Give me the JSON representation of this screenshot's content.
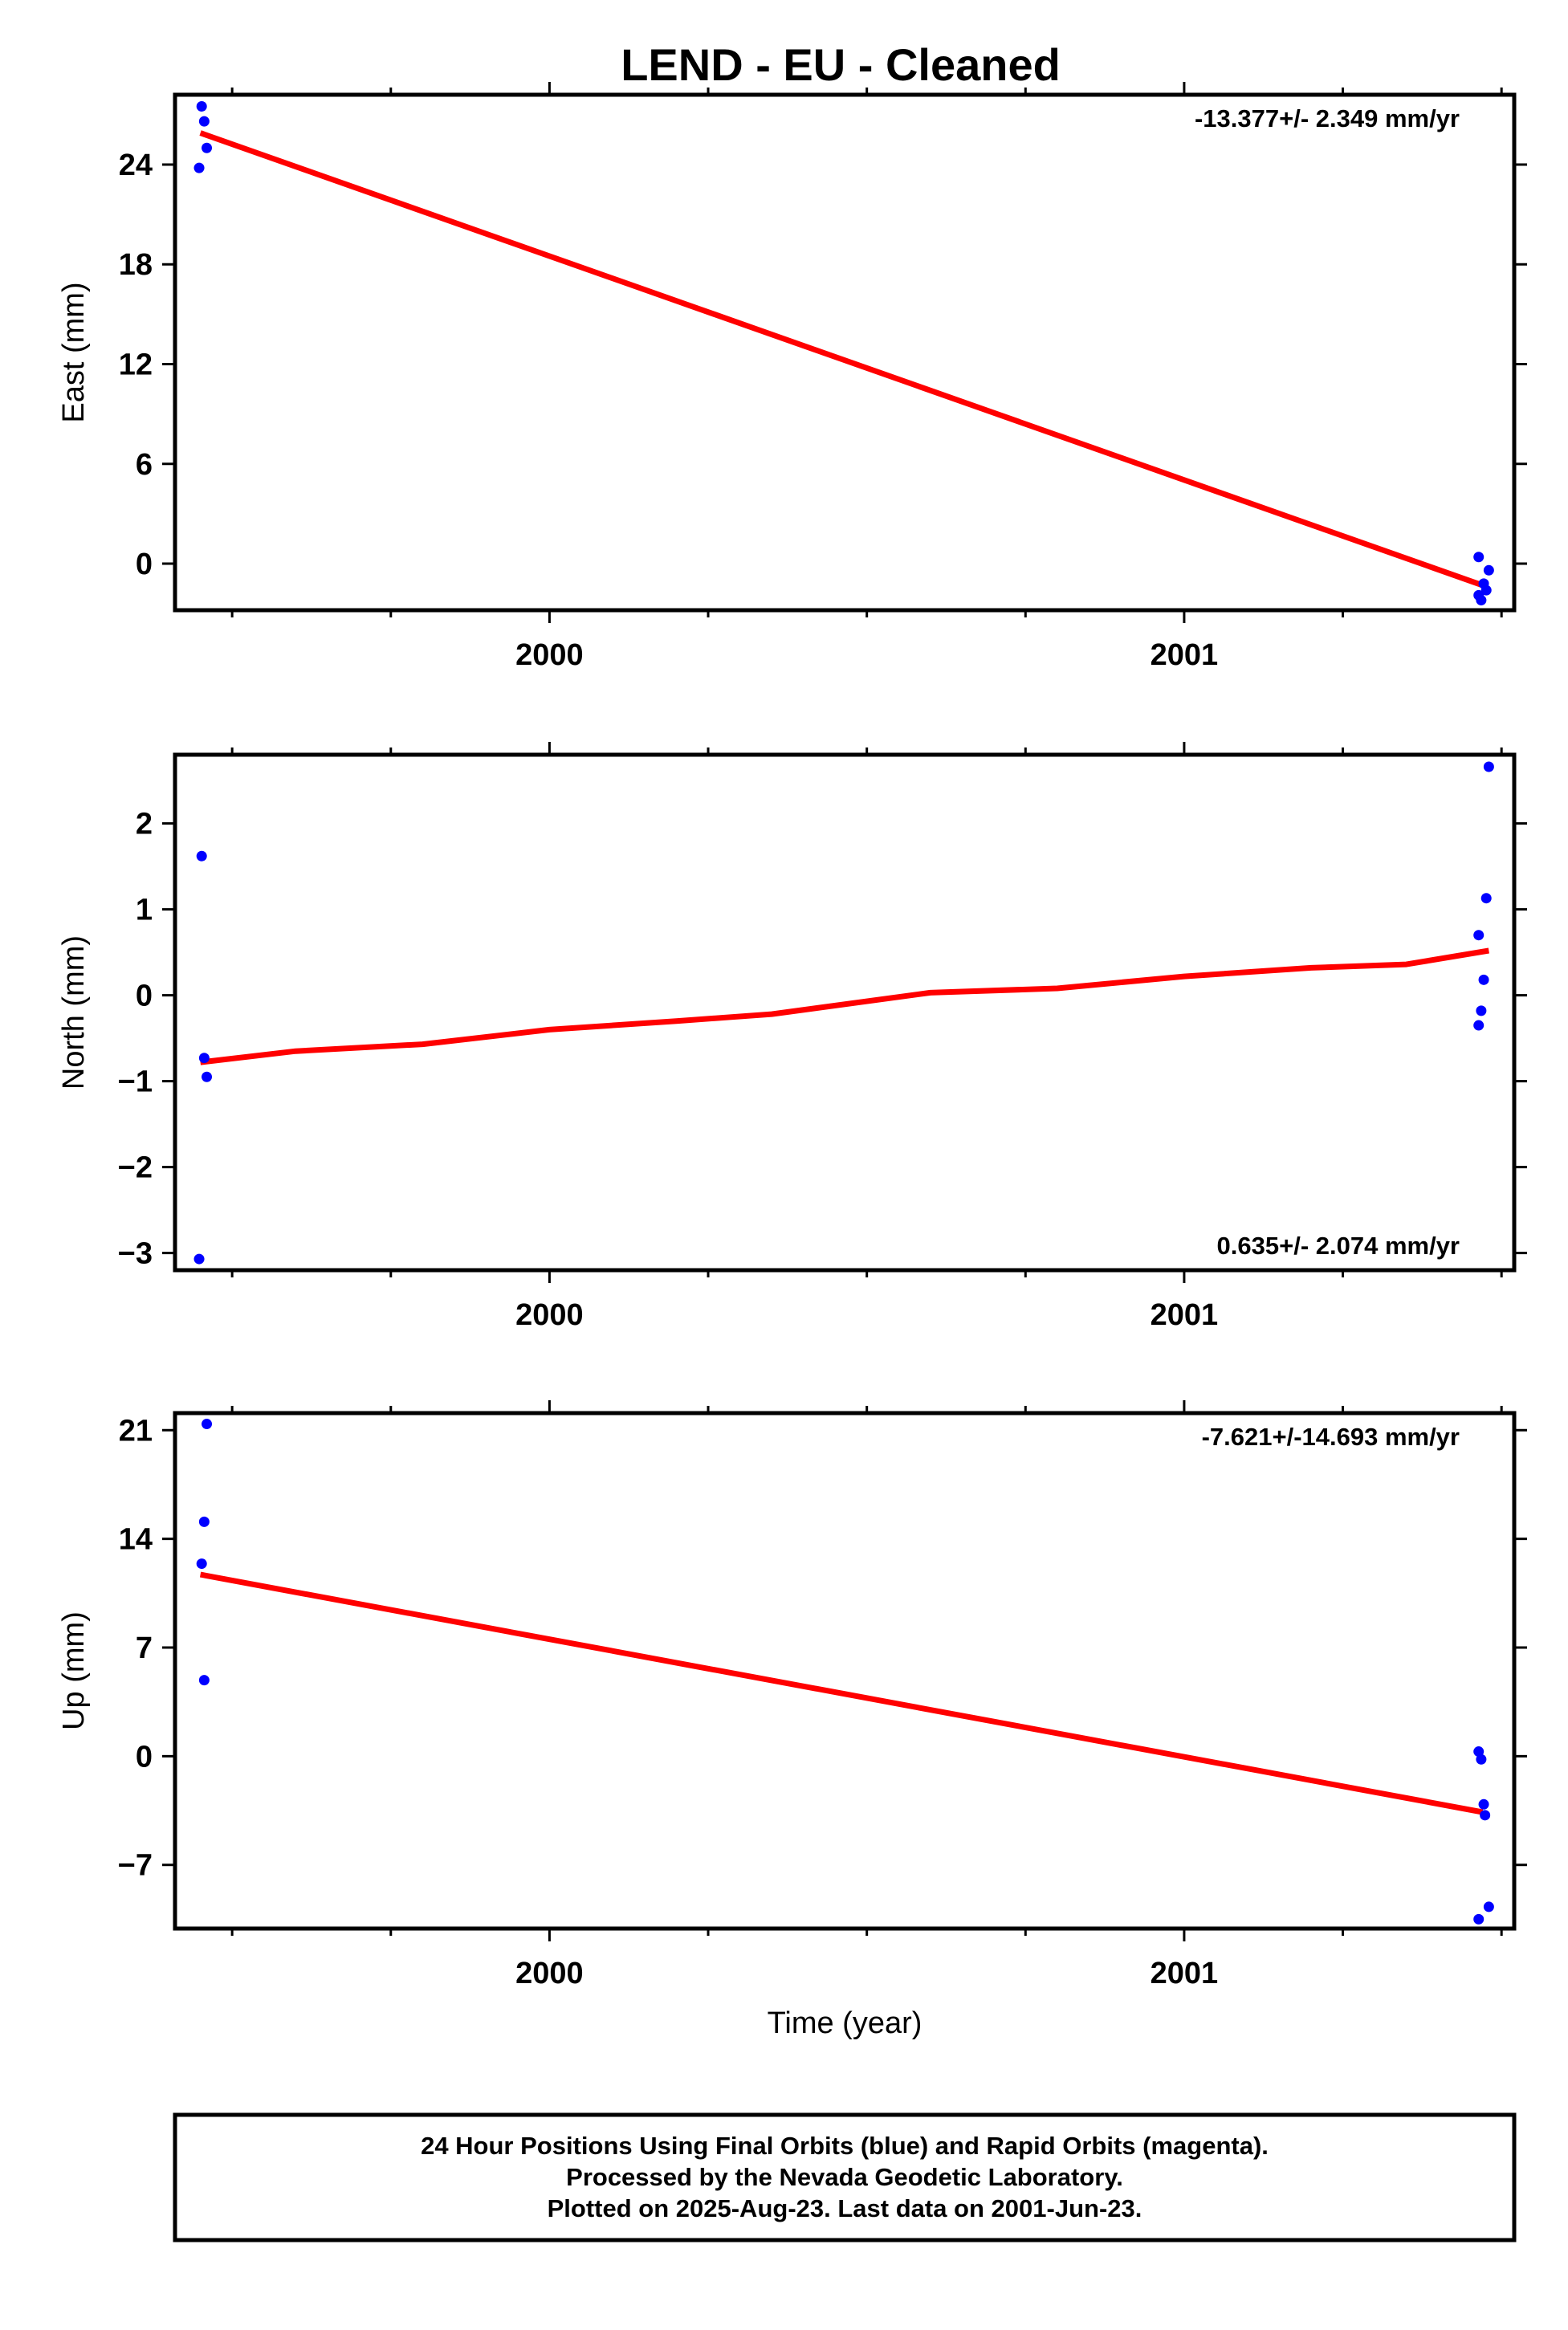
{
  "title": "LEND  - EU - Cleaned",
  "chart_data": [
    {
      "type": "scatter",
      "ylabel": "East (mm)",
      "xlabel": "",
      "xlim": [
        1999.41,
        2001.52
      ],
      "ylim": [
        -2.8,
        28.2
      ],
      "yticks": [
        0,
        6,
        12,
        18,
        24
      ],
      "xticks": [
        2000,
        2001
      ],
      "rate": "-13.377+/- 2.349 mm/yr",
      "rate_position": "top-right",
      "points": [
        {
          "x": 1999.452,
          "y": 27.5
        },
        {
          "x": 1999.456,
          "y": 26.6
        },
        {
          "x": 1999.46,
          "y": 25.0
        },
        {
          "x": 1999.448,
          "y": 23.8
        },
        {
          "x": 2001.464,
          "y": 0.4
        },
        {
          "x": 2001.464,
          "y": -1.9
        },
        {
          "x": 2001.468,
          "y": -2.2
        },
        {
          "x": 2001.472,
          "y": -1.2
        },
        {
          "x": 2001.476,
          "y": -1.6
        },
        {
          "x": 2001.48,
          "y": -0.4
        }
      ],
      "fit": [
        {
          "x": 1999.45,
          "y": 25.9
        },
        {
          "x": 2001.47,
          "y": -1.3
        }
      ]
    },
    {
      "type": "scatter",
      "ylabel": "North (mm)",
      "xlabel": "",
      "xlim": [
        1999.41,
        2001.52
      ],
      "ylim": [
        -3.2,
        2.8
      ],
      "yticks": [
        -3,
        -2,
        -1,
        0,
        1,
        2
      ],
      "xticks": [
        2000,
        2001
      ],
      "rate": "0.635+/- 2.074 mm/yr",
      "rate_position": "bottom-right",
      "points": [
        {
          "x": 1999.452,
          "y": 1.62
        },
        {
          "x": 1999.456,
          "y": -0.73
        },
        {
          "x": 1999.46,
          "y": -0.95
        },
        {
          "x": 1999.448,
          "y": -3.07
        },
        {
          "x": 2001.48,
          "y": 2.66
        },
        {
          "x": 2001.476,
          "y": 1.13
        },
        {
          "x": 2001.464,
          "y": 0.7
        },
        {
          "x": 2001.472,
          "y": 0.18
        },
        {
          "x": 2001.468,
          "y": -0.18
        },
        {
          "x": 2001.464,
          "y": -0.35
        }
      ],
      "fit": [
        {
          "x": 1999.45,
          "y": -0.78
        },
        {
          "x": 1999.6,
          "y": -0.65
        },
        {
          "x": 1999.8,
          "y": -0.57
        },
        {
          "x": 2000.0,
          "y": -0.4
        },
        {
          "x": 2000.2,
          "y": -0.3
        },
        {
          "x": 2000.35,
          "y": -0.22
        },
        {
          "x": 2000.6,
          "y": 0.03
        },
        {
          "x": 2000.8,
          "y": 0.08
        },
        {
          "x": 2001.0,
          "y": 0.22
        },
        {
          "x": 2001.2,
          "y": 0.32
        },
        {
          "x": 2001.35,
          "y": 0.36
        },
        {
          "x": 2001.48,
          "y": 0.52
        }
      ]
    },
    {
      "type": "scatter",
      "ylabel": "Up (mm)",
      "xlabel": "Time (year)",
      "xlim": [
        1999.41,
        2001.52
      ],
      "ylim": [
        -11.1,
        22.1
      ],
      "yticks": [
        -7,
        0,
        7,
        14,
        21
      ],
      "xticks": [
        2000,
        2001
      ],
      "rate": "-7.621+/-14.693 mm/yr",
      "rate_position": "top-right",
      "points": [
        {
          "x": 1999.46,
          "y": 21.4
        },
        {
          "x": 1999.456,
          "y": 15.1
        },
        {
          "x": 1999.452,
          "y": 12.4
        },
        {
          "x": 1999.456,
          "y": 4.9
        },
        {
          "x": 2001.464,
          "y": 0.3
        },
        {
          "x": 2001.468,
          "y": -0.2
        },
        {
          "x": 2001.472,
          "y": -3.1
        },
        {
          "x": 2001.474,
          "y": -3.8
        },
        {
          "x": 2001.48,
          "y": -9.7
        },
        {
          "x": 2001.464,
          "y": -10.5
        }
      ],
      "fit": [
        {
          "x": 1999.45,
          "y": 11.7
        },
        {
          "x": 2001.47,
          "y": -3.6
        }
      ]
    }
  ],
  "footer": {
    "line1": "24 Hour Positions Using Final Orbits (blue) and Rapid Orbits (magenta).",
    "line2": "Processed by the Nevada Geodetic Laboratory.",
    "line3": "Plotted on 2025-Aug-23. Last data on 2001-Jun-23."
  },
  "colors": {
    "points": "#0000ff",
    "fit": "#ff0000",
    "frame": "#000000"
  }
}
